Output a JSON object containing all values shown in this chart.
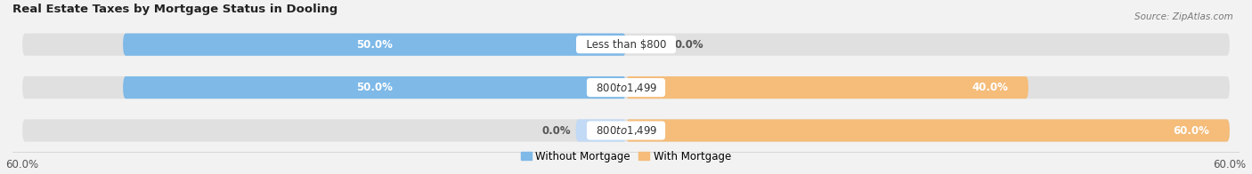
{
  "title": "Real Estate Taxes by Mortgage Status in Dooling",
  "source": "Source: ZipAtlas.com",
  "rows": [
    {
      "label": "Less than $800",
      "without": 50.0,
      "with": 0.0
    },
    {
      "label": "$800 to $1,499",
      "without": 50.0,
      "with": 40.0
    },
    {
      "label": "$800 to $1,499",
      "without": 0.0,
      "with": 60.0
    }
  ],
  "max_val": 60.0,
  "color_without": "#7eb9e8",
  "color_with": "#f5bc7a",
  "color_without_light": "#c2daf5",
  "bg_color": "#f2f2f2",
  "track_color": "#e0e0e0",
  "legend_without": "Without Mortgage",
  "legend_with": "With Mortgage",
  "title_fontsize": 9.5,
  "label_fontsize": 8.5,
  "tick_fontsize": 8.5
}
